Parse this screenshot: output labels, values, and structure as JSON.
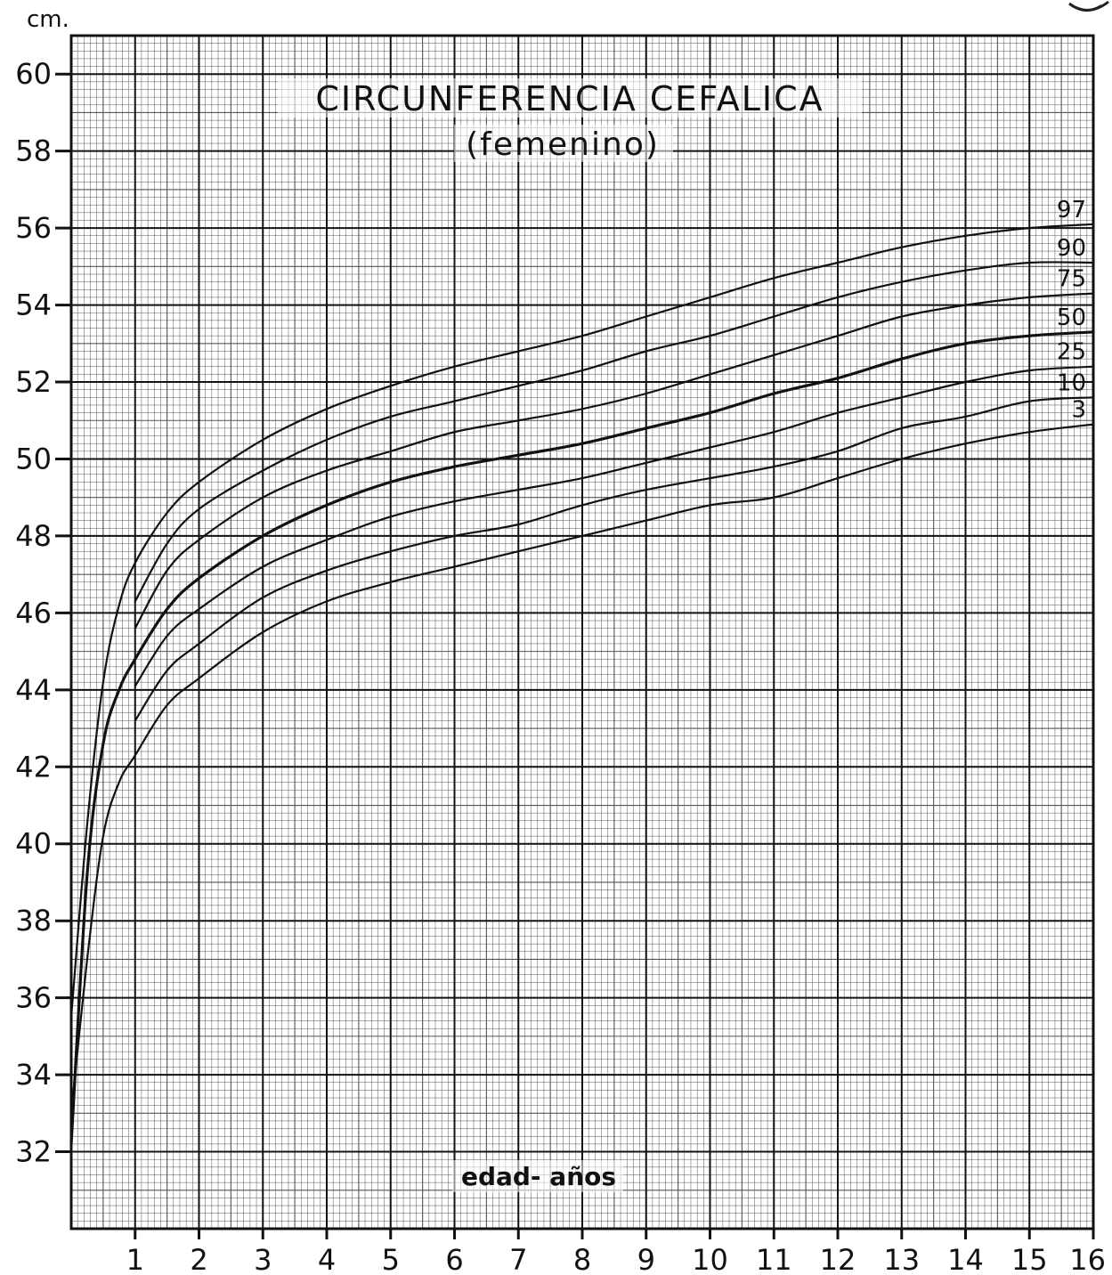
{
  "chart_data": {
    "type": "line",
    "title": "CIRCUNFERENCIA   CEFALICA",
    "subtitle": "(femenino)",
    "xlabel": "edad- años",
    "ylabel": "cm.",
    "xlim": [
      0,
      16
    ],
    "ylim": [
      30,
      61
    ],
    "x_ticks": [
      1,
      2,
      3,
      4,
      5,
      6,
      7,
      8,
      9,
      10,
      11,
      12,
      13,
      14,
      15,
      16
    ],
    "y_ticks": [
      32,
      34,
      36,
      38,
      40,
      42,
      44,
      46,
      48,
      50,
      52,
      54,
      56,
      58,
      60
    ],
    "grid": true,
    "legend": "percentile labels at right end of curves",
    "series": [
      {
        "name": "97",
        "x": [
          0,
          0.25,
          0.5,
          0.75,
          1,
          1.5,
          2,
          3,
          4,
          5,
          6,
          7,
          8,
          9,
          10,
          11,
          12,
          13,
          14,
          15,
          16
        ],
        "y": [
          35.5,
          40.5,
          44.2,
          46.2,
          47.3,
          48.6,
          49.4,
          50.5,
          51.3,
          51.9,
          52.4,
          52.8,
          53.2,
          53.7,
          54.2,
          54.7,
          55.1,
          55.5,
          55.8,
          56.0,
          56.1
        ]
      },
      {
        "name": "90",
        "x": [
          1,
          1.5,
          2,
          3,
          4,
          5,
          6,
          7,
          8,
          9,
          10,
          11,
          12,
          13,
          14,
          15,
          16
        ],
        "y": [
          46.3,
          47.8,
          48.7,
          49.7,
          50.5,
          51.1,
          51.5,
          51.9,
          52.3,
          52.8,
          53.2,
          53.7,
          54.2,
          54.6,
          54.9,
          55.1,
          55.1
        ]
      },
      {
        "name": "75",
        "x": [
          1,
          1.5,
          2,
          3,
          4,
          5,
          6,
          7,
          8,
          9,
          10,
          11,
          12,
          13,
          14,
          15,
          16
        ],
        "y": [
          45.6,
          47.1,
          47.9,
          49.0,
          49.7,
          50.2,
          50.7,
          51.0,
          51.3,
          51.7,
          52.2,
          52.7,
          53.2,
          53.7,
          54.0,
          54.2,
          54.3
        ]
      },
      {
        "name": "50",
        "x": [
          0,
          0.25,
          0.5,
          0.75,
          1,
          1.5,
          2,
          3,
          4,
          5,
          6,
          7,
          8,
          9,
          10,
          11,
          12,
          13,
          14,
          15,
          16
        ],
        "y": [
          32.2,
          39.2,
          42.6,
          44.0,
          44.8,
          46.1,
          46.9,
          48.0,
          48.8,
          49.4,
          49.8,
          50.1,
          50.4,
          50.8,
          51.2,
          51.7,
          52.1,
          52.6,
          53.0,
          53.2,
          53.3
        ]
      },
      {
        "name": "25",
        "x": [
          1,
          1.5,
          2,
          3,
          4,
          5,
          6,
          7,
          8,
          9,
          10,
          11,
          12,
          13,
          14,
          15,
          16
        ],
        "y": [
          44.1,
          45.4,
          46.1,
          47.2,
          47.9,
          48.5,
          48.9,
          49.2,
          49.5,
          49.9,
          50.3,
          50.7,
          51.2,
          51.6,
          52.0,
          52.3,
          52.4
        ]
      },
      {
        "name": "10",
        "x": [
          1,
          1.5,
          2,
          3,
          4,
          5,
          6,
          7,
          8,
          9,
          10,
          11,
          12,
          13,
          14,
          15,
          16
        ],
        "y": [
          43.2,
          44.5,
          45.2,
          46.4,
          47.1,
          47.6,
          48.0,
          48.3,
          48.8,
          49.2,
          49.5,
          49.8,
          50.2,
          50.8,
          51.1,
          51.5,
          51.6
        ]
      },
      {
        "name": "3",
        "x": [
          0,
          0.25,
          0.5,
          0.75,
          1,
          1.5,
          2,
          3,
          4,
          5,
          6,
          7,
          8,
          9,
          10,
          11,
          12,
          13,
          14,
          15,
          16
        ],
        "y": [
          33.0,
          37.0,
          40.2,
          41.6,
          42.3,
          43.6,
          44.3,
          45.5,
          46.3,
          46.8,
          47.2,
          47.6,
          48.0,
          48.4,
          48.8,
          49.0,
          49.5,
          50.0,
          50.4,
          50.7,
          50.9
        ]
      }
    ]
  }
}
